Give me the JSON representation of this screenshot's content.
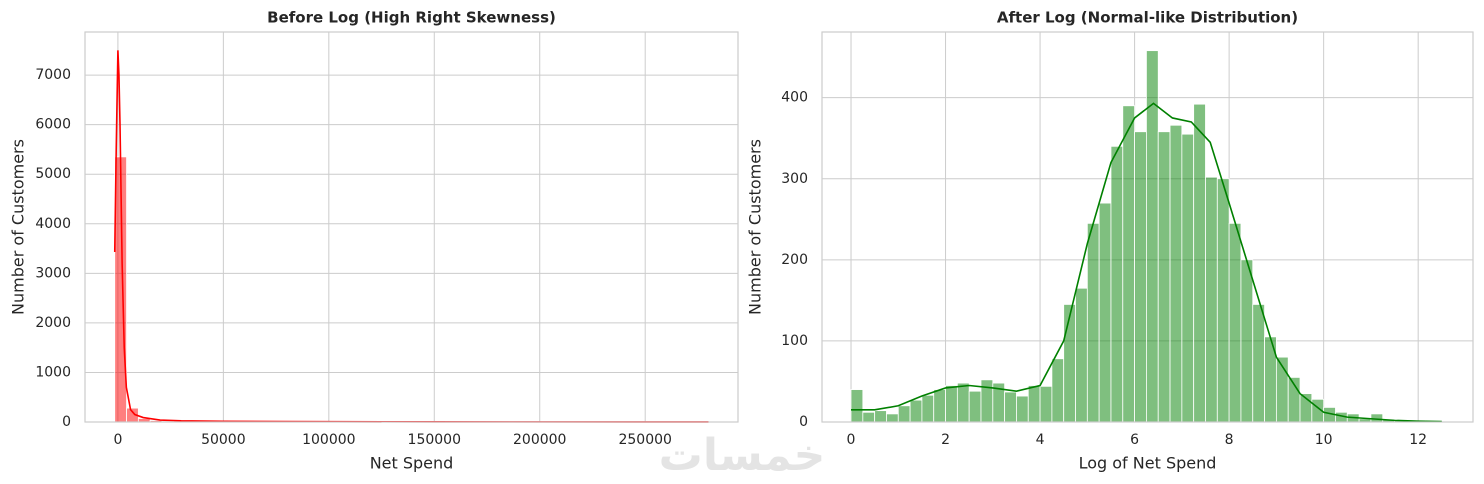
{
  "chart_data": [
    {
      "type": "histogram",
      "title": "Before Log (High Right Skewness)",
      "x_label": "Net Spend",
      "y_label": "Number of Customers",
      "bins": [
        -1500,
        4100,
        9700,
        15300,
        20900,
        26500,
        32100,
        37700,
        43300,
        48900,
        54500,
        60100,
        65700,
        71300,
        76900,
        82500,
        88100,
        93700,
        99300,
        104900,
        110500,
        116100,
        121700,
        127300,
        132900,
        138500,
        144100,
        149700,
        155300,
        160900,
        166500,
        172100,
        177700,
        183300,
        188900,
        194500,
        200100,
        205700,
        211300,
        216900,
        222500,
        228100,
        233700,
        239300,
        244900,
        250500,
        256100,
        261700,
        267300,
        272900,
        278500
      ],
      "values": [
        5350,
        280,
        70,
        30,
        20,
        25,
        15,
        10,
        8,
        12,
        6,
        4,
        3,
        3,
        2,
        2,
        1,
        1,
        1,
        1,
        1,
        0,
        0,
        0,
        0,
        0,
        0,
        0,
        0,
        0,
        0,
        0,
        0,
        0,
        0,
        0,
        0,
        0,
        0,
        0,
        0,
        0,
        0,
        0,
        0,
        0,
        0,
        0,
        0,
        1
      ],
      "color": "#ff0000",
      "kde": {
        "x": [
          -1500,
          -800,
          0,
          500,
          1000,
          2000,
          3000,
          4000,
          6000,
          8000,
          12000,
          20000,
          30000,
          50000,
          80000,
          150000,
          280000
        ],
        "y": [
          3430,
          5500,
          7500,
          7000,
          6000,
          3200,
          1500,
          700,
          250,
          150,
          90,
          40,
          25,
          15,
          8,
          3,
          1
        ]
      },
      "xlim": [
        -15600,
        294000
      ],
      "ylim": [
        0,
        7870
      ],
      "xticks": [
        0,
        50000,
        100000,
        150000,
        200000,
        250000
      ],
      "yticks": [
        0,
        1000,
        2000,
        3000,
        4000,
        5000,
        6000,
        7000
      ],
      "grid": true
    },
    {
      "type": "histogram",
      "title": "After Log (Normal-like Distribution)",
      "x_label": "Log of Net Spend",
      "y_label": "Number of Customers",
      "bins": [
        0,
        0.25,
        0.5,
        0.75,
        1,
        1.25,
        1.5,
        1.75,
        2,
        2.25,
        2.5,
        2.75,
        3,
        3.25,
        3.5,
        3.75,
        4,
        4.25,
        4.5,
        4.75,
        5,
        5.25,
        5.5,
        5.75,
        6,
        6.25,
        6.5,
        6.75,
        7,
        7.25,
        7.5,
        7.75,
        8,
        8.25,
        8.5,
        8.75,
        9,
        9.25,
        9.5,
        9.75,
        10,
        10.25,
        10.5,
        10.75,
        11,
        11.25,
        11.5,
        11.75,
        12,
        12.25,
        12.5
      ],
      "values": [
        40,
        12,
        14,
        10,
        20,
        27,
        33,
        40,
        45,
        48,
        38,
        52,
        48,
        37,
        32,
        45,
        44,
        78,
        145,
        165,
        245,
        270,
        340,
        390,
        358,
        458,
        358,
        366,
        355,
        392,
        302,
        300,
        245,
        200,
        145,
        105,
        80,
        55,
        35,
        28,
        18,
        12,
        10,
        4,
        10,
        3,
        2,
        1,
        1,
        1
      ],
      "color": "#008000",
      "kde": {
        "x": [
          0,
          0.5,
          1,
          1.5,
          2,
          2.5,
          3,
          3.5,
          4,
          4.5,
          5,
          5.5,
          6,
          6.4,
          6.8,
          7.2,
          7.6,
          8,
          8.5,
          9,
          9.5,
          10,
          10.5,
          11,
          11.5,
          12,
          12.5
        ],
        "y": [
          15,
          15,
          20,
          32,
          42,
          45,
          42,
          38,
          45,
          100,
          220,
          320,
          375,
          393,
          375,
          370,
          345,
          270,
          175,
          80,
          35,
          12,
          6,
          4,
          2,
          1,
          0.5
        ]
      },
      "xlim": [
        -0.614,
        13.16
      ],
      "ylim": [
        0,
        481
      ],
      "xticks": [
        0,
        2,
        4,
        6,
        8,
        10,
        12
      ],
      "yticks": [
        0,
        100,
        200,
        300,
        400
      ],
      "grid": true
    }
  ],
  "watermark": "خمسات"
}
